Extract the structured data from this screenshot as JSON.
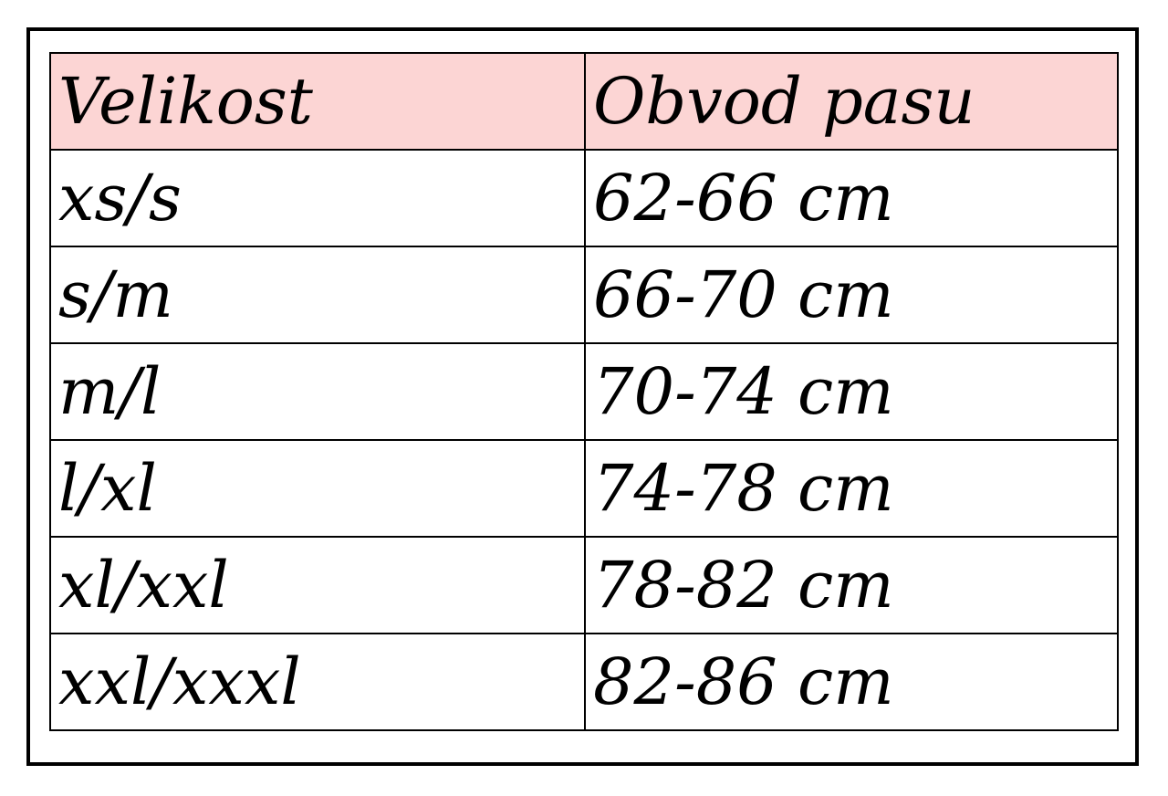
{
  "table": {
    "header_bg": "#fcd5d4",
    "columns": [
      "Velikost",
      "Obvod pasu"
    ],
    "rows": [
      [
        "xs/s",
        "62-66 cm"
      ],
      [
        "s/m",
        "66-70 cm"
      ],
      [
        "m/l",
        "70-74 cm"
      ],
      [
        "l/xl",
        "74-78 cm"
      ],
      [
        "xl/xxl",
        "78-82 cm"
      ],
      [
        "xxl/xxxl",
        "82-86 cm"
      ]
    ]
  }
}
